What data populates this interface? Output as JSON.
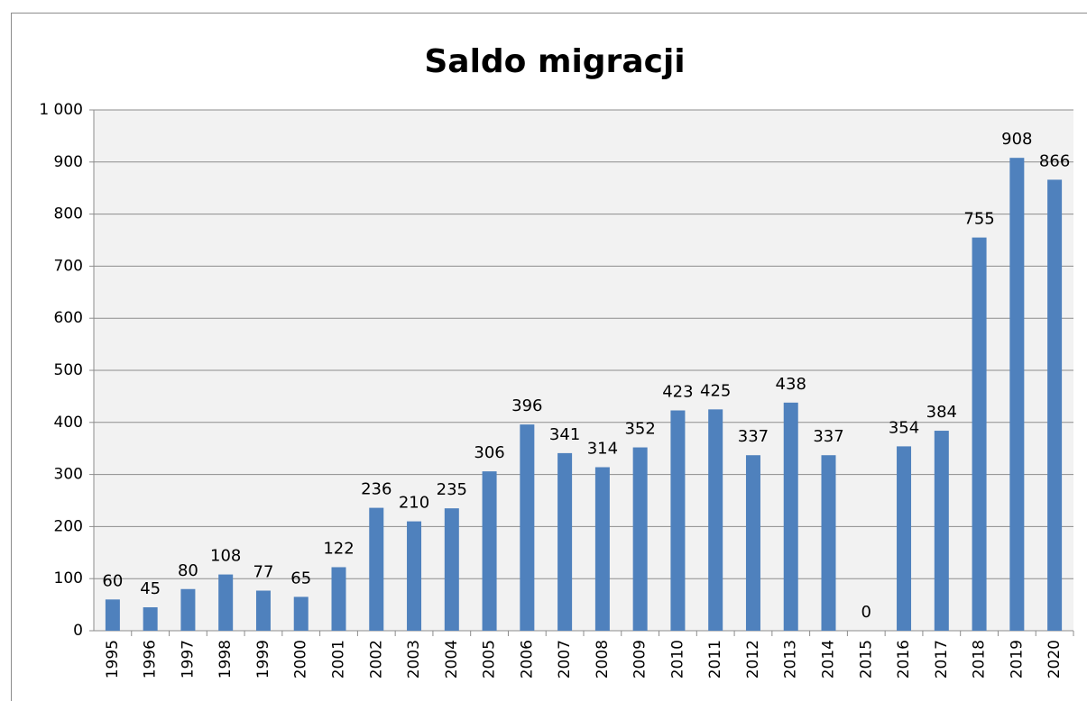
{
  "chart_data": {
    "type": "bar",
    "title": "Saldo migracji",
    "categories": [
      "1995",
      "1996",
      "1997",
      "1998",
      "1999",
      "2000",
      "2001",
      "2002",
      "2003",
      "2004",
      "2005",
      "2006",
      "2007",
      "2008",
      "2009",
      "2010",
      "2011",
      "2012",
      "2013",
      "2014",
      "2015",
      "2016",
      "2017",
      "2018",
      "2019",
      "2020"
    ],
    "values": [
      60,
      45,
      80,
      108,
      77,
      65,
      122,
      236,
      210,
      235,
      306,
      396,
      341,
      314,
      352,
      423,
      425,
      337,
      438,
      337,
      0,
      354,
      384,
      755,
      908,
      866
    ],
    "color": "#4f81bd",
    "ylim": [
      0,
      1000
    ],
    "yticks": [
      0,
      100,
      200,
      300,
      400,
      500,
      600,
      700,
      800,
      900,
      {
        "value": 1000,
        "label": "1 000"
      }
    ],
    "grid": true
  }
}
